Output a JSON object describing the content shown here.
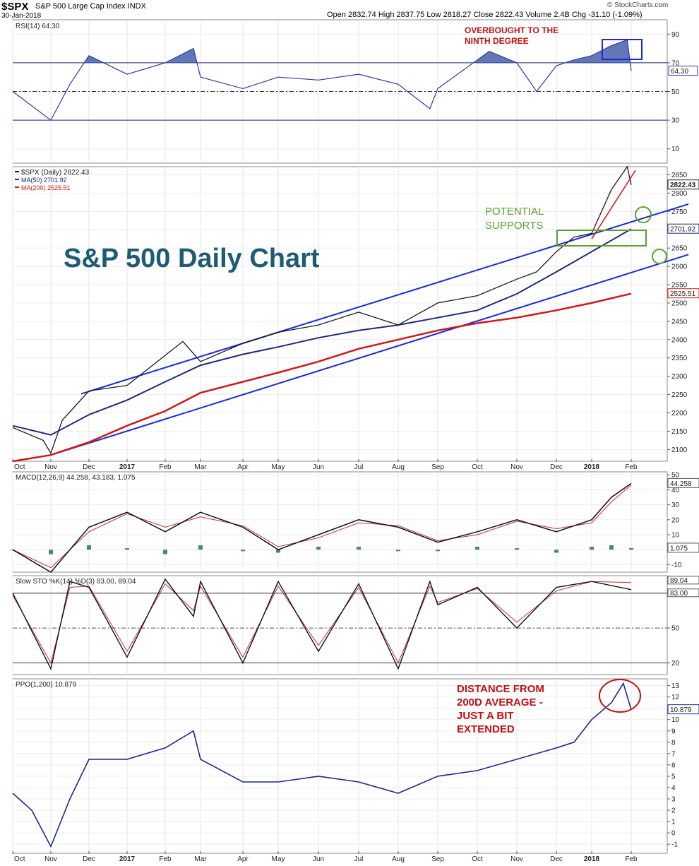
{
  "header": {
    "ticker": "$SPX",
    "name": "S&P 500 Large Cap Index INDX",
    "date": "30-Jan-2018",
    "open_label": "Open",
    "open": "2832.74",
    "high_label": "High",
    "high": "2837.75",
    "low_label": "Low",
    "low": "2818.27",
    "close_label": "Close",
    "close": "2822.43",
    "volume_label": "Volume",
    "volume": "2.4B",
    "chg_label": "Chg",
    "chg": "-31.10 (-1.09%)",
    "credit": "© StockCharts.com"
  },
  "colors": {
    "price_line": "#1a1a1a",
    "ma50": "#1c2a7a",
    "ma200": "#d01818",
    "channel": "#1c2ad6",
    "rsi": "#2f3aa0",
    "rsi_fill": "#5068b0",
    "annotation_red": "#c01010",
    "annotation_green": "#58a032",
    "title_teal": "#1d5c74"
  },
  "x_axis": {
    "ticks": [
      "Oct",
      "Nov",
      "Dec",
      "2017",
      "Feb",
      "Mar",
      "Apr",
      "May",
      "Jun",
      "Jul",
      "Aug",
      "Sep",
      "Oct",
      "Nov",
      "Dec",
      "2018",
      "Feb"
    ],
    "bold_ticks": [
      "2017",
      "2018"
    ]
  },
  "chart_data": [
    {
      "type": "line",
      "panel": "RSI",
      "legend": "RSI(14) 64.30",
      "y_ticks": [
        "90",
        "70",
        "50",
        "30",
        "10"
      ],
      "levels": [
        70,
        50,
        30
      ],
      "ylim": [
        0,
        100
      ],
      "last_value_label": "64.30",
      "series": [
        {
          "name": "RSI(14)",
          "x_months": [
            0,
            1,
            1.5,
            2,
            3,
            4,
            4.8,
            5,
            6,
            7,
            8,
            9,
            10,
            10.8,
            11,
            12,
            12.3,
            13,
            13.5,
            14,
            14.5,
            15,
            15.5,
            15.9,
            16.0
          ],
          "values": [
            50,
            30,
            55,
            75,
            62,
            70,
            80,
            60,
            52,
            60,
            58,
            62,
            55,
            38,
            52,
            72,
            78,
            70,
            50,
            68,
            72,
            75,
            82,
            86,
            64.3
          ]
        }
      ]
    },
    {
      "type": "line",
      "panel": "Price",
      "title": "S&P 500 Daily Chart",
      "legend": [
        "$SPX (Daily) 2822.43",
        "MA(50) 2701.92",
        "MA(200) 2525.51"
      ],
      "y_ticks": [
        "2850",
        "2800",
        "2750",
        "2700",
        "2650",
        "2600",
        "2550",
        "2500",
        "2450",
        "2400",
        "2350",
        "2300",
        "2250",
        "2200",
        "2150",
        "2100"
      ],
      "ylim": [
        2068,
        2872
      ],
      "value_labels": [
        "2822.43",
        "2701.92",
        "2525.51"
      ],
      "series": [
        {
          "name": "$SPX (Daily)",
          "x_months": [
            0,
            0.8,
            1,
            1.3,
            2,
            3,
            4.5,
            5,
            6,
            7,
            8,
            9,
            10,
            11,
            12,
            13,
            13.5,
            14,
            14.5,
            15,
            15.5,
            15.9,
            16.0
          ],
          "values": [
            2160,
            2125,
            2090,
            2180,
            2260,
            2275,
            2395,
            2340,
            2390,
            2420,
            2440,
            2475,
            2440,
            2500,
            2520,
            2565,
            2585,
            2640,
            2680,
            2690,
            2810,
            2872,
            2822.43
          ]
        },
        {
          "name": "MA(50)",
          "x_months": [
            0,
            1,
            2,
            3,
            4,
            5,
            6,
            7,
            8,
            9,
            10,
            11,
            12,
            13,
            14,
            15,
            16.0
          ],
          "values": [
            2165,
            2140,
            2195,
            2235,
            2285,
            2330,
            2360,
            2380,
            2405,
            2425,
            2440,
            2460,
            2480,
            2525,
            2585,
            2640,
            2701.92
          ]
        },
        {
          "name": "MA(200)",
          "x_months": [
            0,
            1,
            2,
            3,
            4,
            5,
            6,
            7,
            8,
            9,
            10,
            11,
            12,
            13,
            14,
            15,
            16.0
          ],
          "values": [
            2068,
            2085,
            2120,
            2165,
            2205,
            2255,
            2285,
            2310,
            2340,
            2375,
            2400,
            2425,
            2445,
            2460,
            2480,
            2500,
            2525.51
          ]
        }
      ],
      "annotations": [
        "POTENTIAL",
        "SUPPORTS"
      ]
    },
    {
      "type": "line",
      "panel": "MACD",
      "legend": "MACD(12,26,9) 44.258, 43.183, 1.075",
      "y_ticks": [
        "50",
        "40",
        "30",
        "20",
        "10",
        "0",
        "-10"
      ],
      "ylim": [
        -15,
        52
      ],
      "value_labels": [
        "44.258",
        "1.075"
      ],
      "series": [
        {
          "name": "MACD",
          "x_months": [
            0,
            1,
            2,
            3,
            4,
            5,
            6,
            7,
            8,
            9,
            10,
            11,
            12,
            13,
            14,
            15,
            15.5,
            16.0
          ],
          "values": [
            0,
            -15,
            15,
            25,
            12,
            25,
            15,
            0,
            10,
            20,
            15,
            5,
            12,
            20,
            12,
            20,
            35,
            44.258
          ]
        },
        {
          "name": "Signal",
          "x_months": [
            0,
            1,
            2,
            3,
            4,
            5,
            6,
            7,
            8,
            9,
            10,
            11,
            12,
            13,
            14,
            15,
            15.5,
            16.0
          ],
          "values": [
            0,
            -12,
            12,
            24,
            15,
            22,
            16,
            2,
            8,
            18,
            16,
            6,
            10,
            19,
            14,
            18,
            32,
            43.183
          ]
        },
        {
          "name": "Histogram",
          "x_months": [
            0,
            1,
            2,
            3,
            4,
            5,
            6,
            7,
            8,
            9,
            10,
            11,
            12,
            13,
            14,
            15,
            15.5,
            16.0
          ],
          "values": [
            0,
            -3,
            3,
            1,
            -3,
            3,
            -1,
            -2,
            2,
            2,
            -1,
            -1,
            2,
            1,
            -2,
            2,
            3,
            1.075
          ]
        }
      ]
    },
    {
      "type": "line",
      "panel": "Slow STO",
      "legend": "Slow STO %K(14) %D(3) 83.00, 89.04",
      "y_ticks": [
        "80",
        "50",
        "20"
      ],
      "levels": [
        80,
        50,
        20
      ],
      "ylim": [
        10,
        95
      ],
      "value_labels": [
        "89.04",
        "83.00"
      ],
      "series": [
        {
          "name": "%K(14)",
          "x_months": [
            0,
            1,
            1.5,
            2,
            3,
            4,
            4.8,
            5,
            6,
            7,
            8,
            9,
            10,
            10.8,
            11,
            12,
            13,
            14,
            15,
            16.0
          ],
          "values": [
            80,
            15,
            90,
            85,
            25,
            92,
            60,
            90,
            20,
            90,
            30,
            88,
            15,
            90,
            70,
            85,
            50,
            85,
            90,
            83
          ]
        },
        {
          "name": "%D(3)",
          "x_months": [
            0,
            1,
            1.5,
            2,
            3,
            4,
            4.8,
            5,
            6,
            7,
            8,
            9,
            10,
            10.8,
            11,
            12,
            13,
            14,
            15,
            16.0
          ],
          "values": [
            78,
            20,
            85,
            86,
            30,
            88,
            65,
            86,
            25,
            86,
            35,
            85,
            20,
            86,
            72,
            84,
            55,
            82,
            90,
            89.04
          ]
        }
      ]
    },
    {
      "type": "line",
      "panel": "PPO",
      "legend": "PPO(1,200) 10.879",
      "y_ticks": [
        "13",
        "12",
        "11",
        "10",
        "9",
        "8",
        "7",
        "6",
        "5",
        "4",
        "3",
        "2",
        "1",
        "0",
        "-1"
      ],
      "ylim": [
        -1.8,
        13.6
      ],
      "value_labels": [
        "10.879"
      ],
      "series": [
        {
          "name": "PPO(1,200)",
          "x_months": [
            0,
            0.5,
            1,
            1.5,
            2,
            3,
            4,
            4.8,
            5,
            6,
            7,
            8,
            9,
            10,
            11,
            12,
            13,
            13.5,
            14,
            14.5,
            15,
            15.5,
            15.8,
            16.0
          ],
          "values": [
            3.5,
            2,
            -1.2,
            3,
            6.5,
            6.5,
            7.5,
            9,
            6.5,
            4.5,
            4.5,
            5,
            4.5,
            3.5,
            5,
            5.5,
            6.5,
            7,
            7.5,
            8,
            10,
            11.5,
            13.2,
            10.879
          ]
        }
      ]
    }
  ],
  "annotations": {
    "rsi_note_1": "OVERBOUGHT TO THE",
    "rsi_note_2": "NINTH DEGREE",
    "supports_1": "POTENTIAL",
    "supports_2": "SUPPORTS",
    "ppo_note_1": "DISTANCE FROM",
    "ppo_note_2": "200D AVERAGE -",
    "ppo_note_3": "JUST A BIT",
    "ppo_note_4": "EXTENDED"
  }
}
